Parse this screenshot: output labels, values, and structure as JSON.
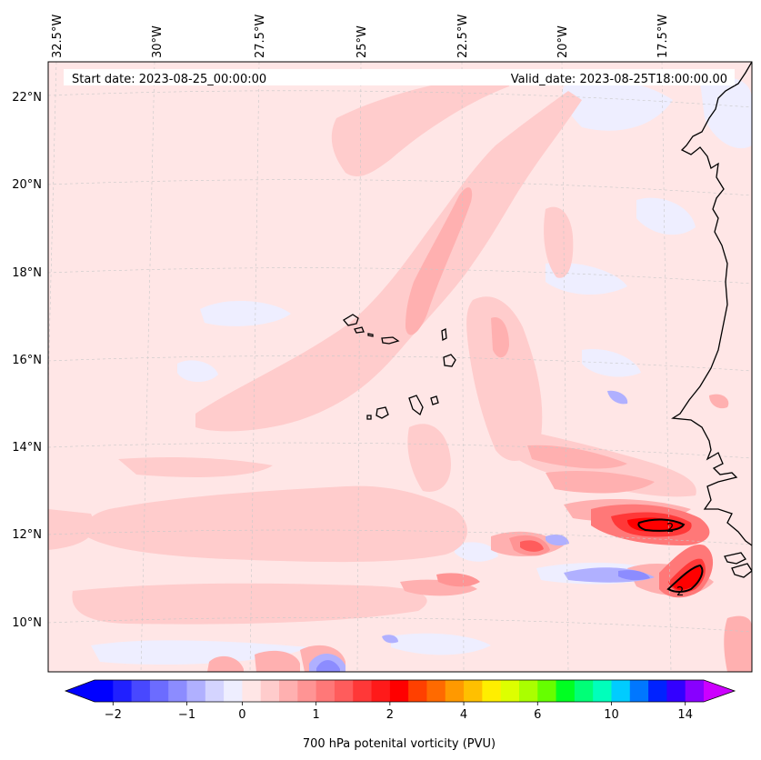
{
  "header": {
    "start_date": "Start date: 2023-08-25_00:00:00",
    "valid_date": "Valid_date: 2023-08-25T18:00:00.00"
  },
  "map": {
    "lon_labels": [
      "32.5°W",
      "30°W",
      "27.5°W",
      "25°W",
      "22.5°W",
      "20°W",
      "17.5°W"
    ],
    "lat_labels": [
      "22°N",
      "20°N",
      "18°N",
      "16°N",
      "14°N",
      "12°N",
      "10°N"
    ],
    "contour_labels": [
      "2",
      "2"
    ]
  },
  "colorbar": {
    "label": "700 hPa potenital vorticity (PVU)",
    "tick_labels": [
      "−2",
      "−1",
      "0",
      "1",
      "2",
      "4",
      "6",
      "10",
      "14"
    ],
    "colors": [
      "#0000ff",
      "#2020ff",
      "#4848ff",
      "#6c6cff",
      "#8c8cff",
      "#b0b0ff",
      "#d4d4ff",
      "#eeeeff",
      "#ffe6e6",
      "#ffcccc",
      "#ffb0b0",
      "#ff9494",
      "#ff7878",
      "#ff5c5c",
      "#ff3838",
      "#ff1a1a",
      "#ff0000",
      "#ff4000",
      "#ff6a00",
      "#ff9900",
      "#ffc000",
      "#ffee00",
      "#ddff00",
      "#aaff00",
      "#66ff00",
      "#00ff22",
      "#00ff77",
      "#00ffbb",
      "#00ccff",
      "#0077ff",
      "#0022ff",
      "#3300ff",
      "#8800ff"
    ],
    "under_color": "#0000ff",
    "over_color": "#cc00ff"
  }
}
